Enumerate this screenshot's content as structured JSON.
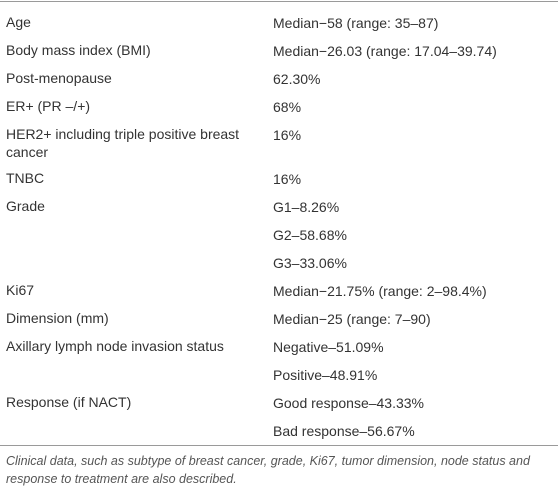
{
  "table": {
    "rows": [
      {
        "label": "Age",
        "values": [
          "Median−58 (range: 35–87)"
        ]
      },
      {
        "label": "Body mass index (BMI)",
        "values": [
          "Median−26.03 (range: 17.04–39.74)"
        ]
      },
      {
        "label": "Post-menopause",
        "values": [
          "62.30%"
        ]
      },
      {
        "label": "ER+ (PR –/+)",
        "values": [
          "68%"
        ]
      },
      {
        "label": "HER2+ including triple positive breast cancer",
        "values": [
          "16%"
        ]
      },
      {
        "label": "TNBC",
        "values": [
          "16%"
        ]
      },
      {
        "label": "Grade",
        "values": [
          "G1–8.26%",
          "G2–58.68%",
          "G3–33.06%"
        ]
      },
      {
        "label": "Ki67",
        "values": [
          "Median−21.75% (range: 2–98.4%)"
        ]
      },
      {
        "label": "Dimension (mm)",
        "values": [
          "Median−25 (range: 7–90)"
        ]
      },
      {
        "label": "Axillary lymph node invasion status",
        "values": [
          "Negative–51.09%",
          "Positive–48.91%"
        ]
      },
      {
        "label": "Response (if NACT)",
        "values": [
          "Good response–43.33%",
          "Bad response–56.67%"
        ]
      }
    ]
  },
  "caption": "Clinical data, such as subtype of breast cancer, grade, Ki67, tumor dimension, node status and response to treatment are also described."
}
